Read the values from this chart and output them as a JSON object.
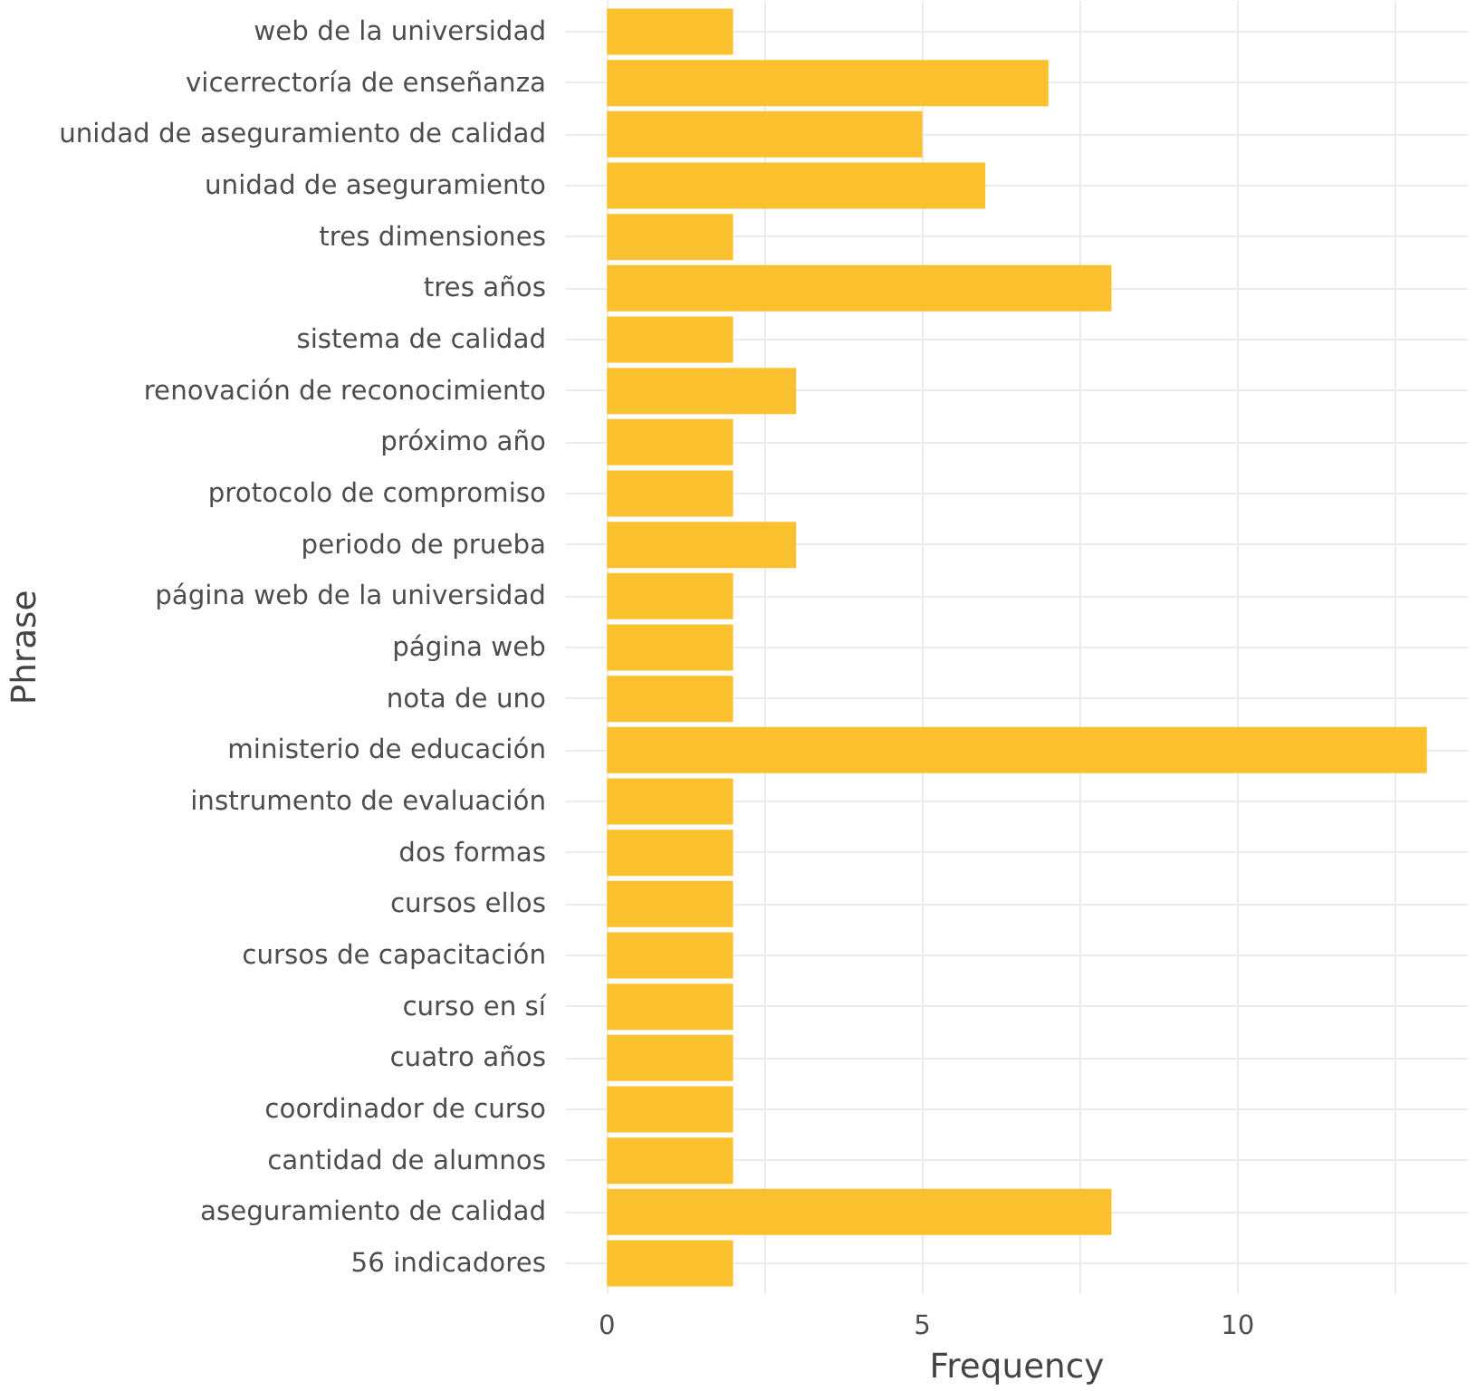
{
  "chart_data": {
    "type": "bar",
    "orientation": "horizontal",
    "xlabel": "Frequency",
    "ylabel": "Phrase",
    "categories": [
      "web de la universidad",
      "vicerrectoría de enseñanza",
      "unidad de aseguramiento de calidad",
      "unidad de aseguramiento",
      "tres dimensiones",
      "tres años",
      "sistema de calidad",
      "renovación de reconocimiento",
      "próximo año",
      "protocolo de compromiso",
      "periodo de prueba",
      "página web de la universidad",
      "página web",
      "nota de uno",
      "ministerio de educación",
      "instrumento de evaluación",
      "dos formas",
      "cursos ellos",
      "cursos de capacitación",
      "curso en sí",
      "cuatro años",
      "coordinador de curso",
      "cantidad de alumnos",
      "aseguramiento de calidad",
      "56 indicadores"
    ],
    "values": [
      2,
      7,
      5,
      6,
      2,
      8,
      2,
      3,
      2,
      2,
      3,
      2,
      2,
      2,
      13,
      2,
      2,
      2,
      2,
      2,
      2,
      2,
      2,
      8,
      2
    ],
    "color": "#fbc02d",
    "xlim": [
      -0.65,
      13.65
    ],
    "xticks": [
      0,
      {
        "value": 2.5,
        "label": null
      },
      5,
      {
        "value": 7.5,
        "label": null
      },
      10,
      {
        "value": 12.5,
        "label": null
      }
    ],
    "grid": true
  }
}
